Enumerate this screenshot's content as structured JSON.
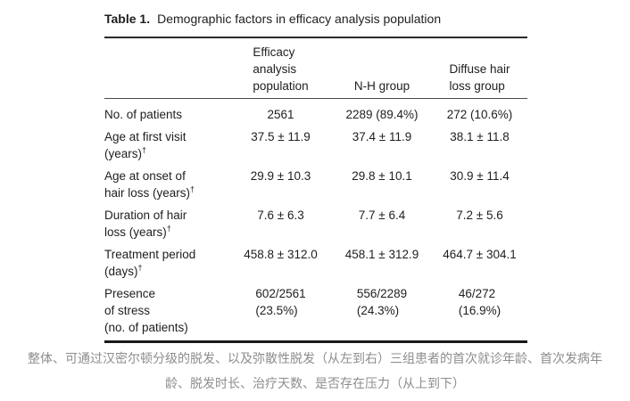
{
  "colors": {
    "text": "#1e1e1e",
    "caption_text": "#8d8d8d",
    "rule_heavy": "#2a2a2a",
    "rule_light": "#4a4a4a",
    "background": "#ffffff"
  },
  "table": {
    "title_label": "Table 1.",
    "title_text": "Demographic factors in efficacy analysis population",
    "columns": [
      {
        "lines": [
          "Efficacy",
          "analysis",
          "population"
        ]
      },
      {
        "lines": [
          "N-H group"
        ]
      },
      {
        "lines": [
          "Diffuse hair",
          "loss group"
        ]
      }
    ],
    "rows": [
      {
        "label_lines": [
          "No. of patients"
        ],
        "label_sup": "",
        "values": [
          [
            "2561"
          ],
          [
            "2289 (89.4%)"
          ],
          [
            "272 (10.6%)"
          ]
        ]
      },
      {
        "label_lines": [
          "Age at first visit",
          "(years)"
        ],
        "label_sup": "†",
        "values": [
          [
            "37.5 ± 11.9"
          ],
          [
            "37.4 ± 11.9"
          ],
          [
            "38.1 ± 11.8"
          ]
        ]
      },
      {
        "label_lines": [
          "Age at onset of",
          "hair loss (years)"
        ],
        "label_sup": "†",
        "values": [
          [
            "29.9 ± 10.3"
          ],
          [
            "29.8 ± 10.1"
          ],
          [
            "30.9 ± 11.4"
          ]
        ]
      },
      {
        "label_lines": [
          "Duration of hair",
          "loss (years)"
        ],
        "label_sup": "†",
        "values": [
          [
            "7.6 ± 6.3"
          ],
          [
            "7.7 ± 6.4"
          ],
          [
            "7.2 ± 5.6"
          ]
        ]
      },
      {
        "label_lines": [
          "Treatment period",
          "(days)"
        ],
        "label_sup": "†",
        "values": [
          [
            "458.8 ± 312.0"
          ],
          [
            "458.1 ± 312.9"
          ],
          [
            "464.7 ± 304.1"
          ]
        ]
      },
      {
        "label_lines": [
          "Presence",
          "of stress",
          "(no. of patients)"
        ],
        "label_sup": "",
        "values": [
          [
            "602/2561",
            "(23.5%)"
          ],
          [
            "556/2289",
            "(24.3%)"
          ],
          [
            "46/272",
            "(16.9%)"
          ]
        ]
      }
    ]
  },
  "caption": {
    "lines": [
      "整体、可通过汉密尔顿分级的脱发、以及弥散性脱发（从左到右）三组患者的首次就诊年龄、首次发病年",
      "龄、脱发时长、治疗天数、是否存在压力（从上到下）"
    ]
  }
}
